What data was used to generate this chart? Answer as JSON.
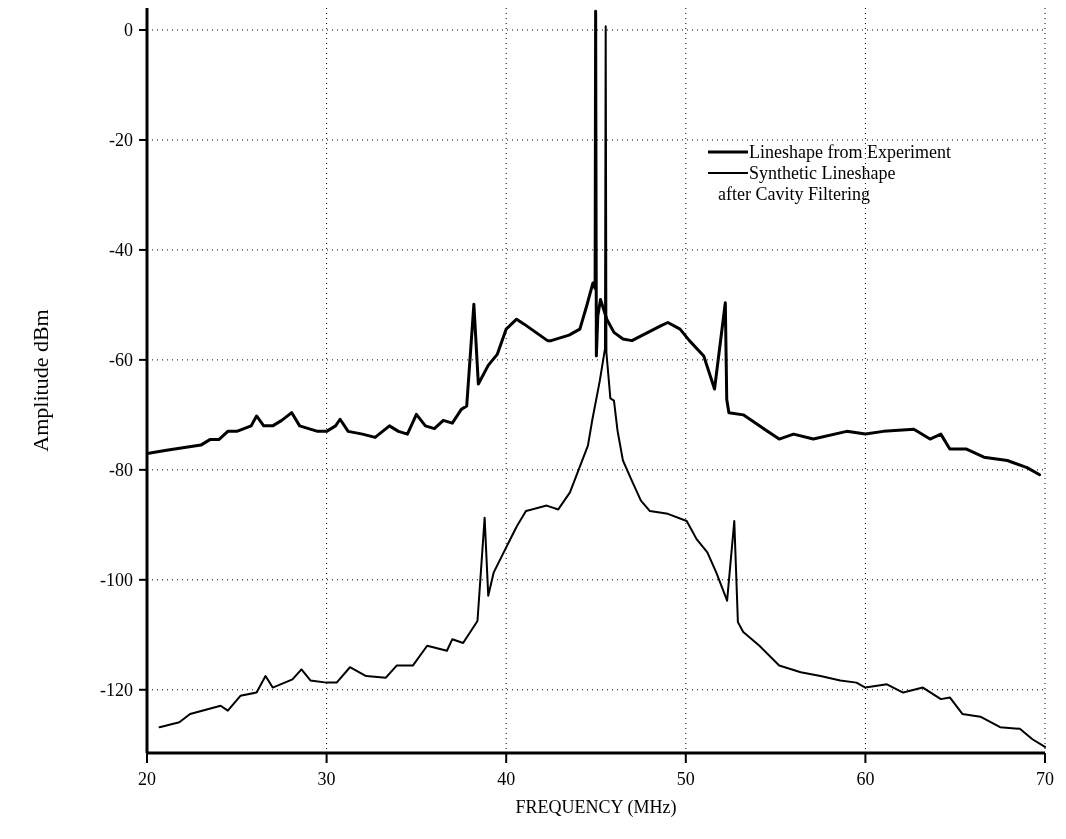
{
  "chart_data": {
    "type": "line",
    "xlabel": "FREQUENCY (MHz)",
    "ylabel": "Amplitude dBm",
    "xlim": [
      20,
      70
    ],
    "ylim": [
      -131.5,
      4
    ],
    "xticks": [
      20,
      30,
      40,
      50,
      60,
      70
    ],
    "yticks": [
      0,
      -20,
      -40,
      -60,
      -80,
      -100,
      -120
    ],
    "grid": true,
    "legend": "top right",
    "line_style": "solid",
    "series": [
      {
        "name": "Lineshape from Experiment",
        "color": "#000000",
        "x": [
          20.1,
          21,
          22,
          23,
          23.5,
          24,
          24.5,
          25,
          25.8,
          26.1,
          26.5,
          27,
          27.5,
          28.06,
          28.5,
          29,
          29.5,
          30,
          30.5,
          30.75,
          31.2,
          32,
          32.7,
          33.5,
          34,
          34.5,
          35,
          35.5,
          36,
          36.5,
          37,
          37.5,
          37.8,
          38.2,
          38.45,
          39,
          39.5,
          40,
          40.58,
          41,
          42.3,
          42.5,
          43,
          43.5,
          44.1,
          44.48,
          44.83,
          44.95,
          44.98,
          45.02,
          45.1,
          45.25,
          45.6,
          46,
          46.5,
          47,
          48.6,
          49,
          49.68,
          50.2,
          51,
          51.6,
          52.2,
          52.28,
          52.4,
          53.2,
          54.1,
          55.2,
          56,
          57.1,
          58.96,
          60,
          61,
          62.7,
          63.6,
          64.2,
          64.7,
          65.6,
          66.6,
          67.9,
          69,
          69.7
        ],
        "values": [
          -77,
          -76.5,
          -76,
          -75.5,
          -74.5,
          -74.5,
          -73,
          -73,
          -72,
          -70.2,
          -72,
          -72,
          -71,
          -69.6,
          -72,
          -72.5,
          -73,
          -73,
          -72,
          -70.8,
          -73,
          -73.5,
          -74.1,
          -72,
          -73,
          -73.5,
          -69.9,
          -72,
          -72.5,
          -71,
          -71.5,
          -69,
          -68.4,
          -49.9,
          -64.4,
          -61,
          -59,
          -54.4,
          -52.6,
          -53.5,
          -56.5,
          -56.5,
          -56,
          -55.5,
          -54.4,
          -50.2,
          -46,
          -47,
          3.4,
          -59.3,
          -52,
          -49,
          -52.6,
          -55,
          -56.2,
          -56.5,
          -53.8,
          -53.2,
          -54.4,
          -56.5,
          -59.3,
          -65.3,
          -49.6,
          -67.2,
          -69.6,
          -70,
          -72,
          -74.4,
          -73.5,
          -74.4,
          -73,
          -73.5,
          -73,
          -72.6,
          -74.4,
          -73.5,
          -76.2,
          -76.2,
          -77.7,
          -78.3,
          -79.6,
          -80.9
        ]
      },
      {
        "name": "Synthetic Lineshape\nafter Cavity Filtering",
        "color": "#000000",
        "x": [
          20.7,
          21.8,
          22.4,
          24.1,
          24.5,
          25.2,
          26.1,
          26.6,
          27,
          28.1,
          28.6,
          29.1,
          30,
          30.56,
          31.3,
          32.2,
          33.3,
          33.9,
          34.8,
          35.6,
          36.7,
          37,
          37.6,
          38.4,
          38.8,
          39,
          39.3,
          40,
          40.6,
          41.1,
          42.25,
          42.9,
          43.55,
          44.55,
          44.8,
          45.2,
          45.5,
          45.54,
          45.58,
          45.8,
          46,
          46.2,
          46.5,
          47,
          47.5,
          48,
          49,
          50.05,
          50.6,
          51.2,
          51.7,
          52.3,
          52.7,
          52.9,
          53.2,
          54.1,
          55.2,
          56.4,
          57.5,
          58.6,
          59.5,
          60,
          61.2,
          62.1,
          63.2,
          64.2,
          64.7,
          65.4,
          66.4,
          67.5,
          68.6,
          69.3,
          70
        ],
        "values": [
          -126.8,
          -125.9,
          -124.4,
          -122.9,
          -123.8,
          -121.1,
          -120.5,
          -117.5,
          -119.6,
          -118.1,
          -116.3,
          -118.3,
          -118.7,
          -118.7,
          -115.9,
          -117.5,
          -117.8,
          -115.6,
          -115.6,
          -112,
          -112.9,
          -110.8,
          -111.5,
          -107.5,
          -88.7,
          -102.9,
          -98.7,
          -94.1,
          -90.2,
          -87.5,
          -86.5,
          -87.2,
          -84.1,
          -75.6,
          -70.8,
          -64,
          -58,
          0.7,
          -58.7,
          -67,
          -67.4,
          -72.9,
          -78.3,
          -82,
          -85.6,
          -87.5,
          -88,
          -89.3,
          -92.6,
          -95,
          -98.7,
          -103.8,
          -89.3,
          -107.7,
          -109.5,
          -112,
          -115.6,
          -116.8,
          -117.5,
          -118.3,
          -118.7,
          -119.6,
          -119,
          -120.5,
          -119.6,
          -121.7,
          -121.4,
          -124.4,
          -124.9,
          -126.8,
          -127.1,
          -129,
          -130.4
        ]
      }
    ]
  }
}
